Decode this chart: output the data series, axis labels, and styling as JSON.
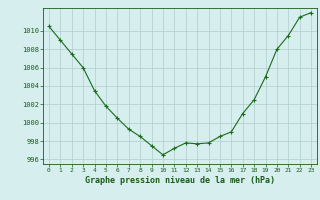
{
  "x": [
    0,
    1,
    2,
    3,
    4,
    5,
    6,
    7,
    8,
    9,
    10,
    11,
    12,
    13,
    14,
    15,
    16,
    17,
    18,
    19,
    20,
    21,
    22,
    23
  ],
  "y": [
    1010.5,
    1009.0,
    1007.5,
    1006.0,
    1003.5,
    1001.8,
    1000.5,
    999.3,
    998.5,
    997.5,
    996.5,
    997.2,
    997.8,
    997.7,
    997.8,
    998.5,
    999.0,
    1001.0,
    1002.5,
    1005.0,
    1008.0,
    1009.5,
    1011.5,
    1012.0
  ],
  "line_color": "#1a6b1a",
  "marker": "+",
  "bg_color": "#d6eeee",
  "grid_color": "#b0cccc",
  "xlabel": "Graphe pression niveau de la mer (hPa)",
  "xlabel_color": "#1a5c1a",
  "tick_color": "#1a5c1a",
  "ylim": [
    995.5,
    1012.5
  ],
  "xlim": [
    -0.5,
    23.5
  ],
  "yticks": [
    996,
    998,
    1000,
    1002,
    1004,
    1006,
    1008,
    1010
  ],
  "xticks": [
    0,
    1,
    2,
    3,
    4,
    5,
    6,
    7,
    8,
    9,
    10,
    11,
    12,
    13,
    14,
    15,
    16,
    17,
    18,
    19,
    20,
    21,
    22,
    23
  ]
}
